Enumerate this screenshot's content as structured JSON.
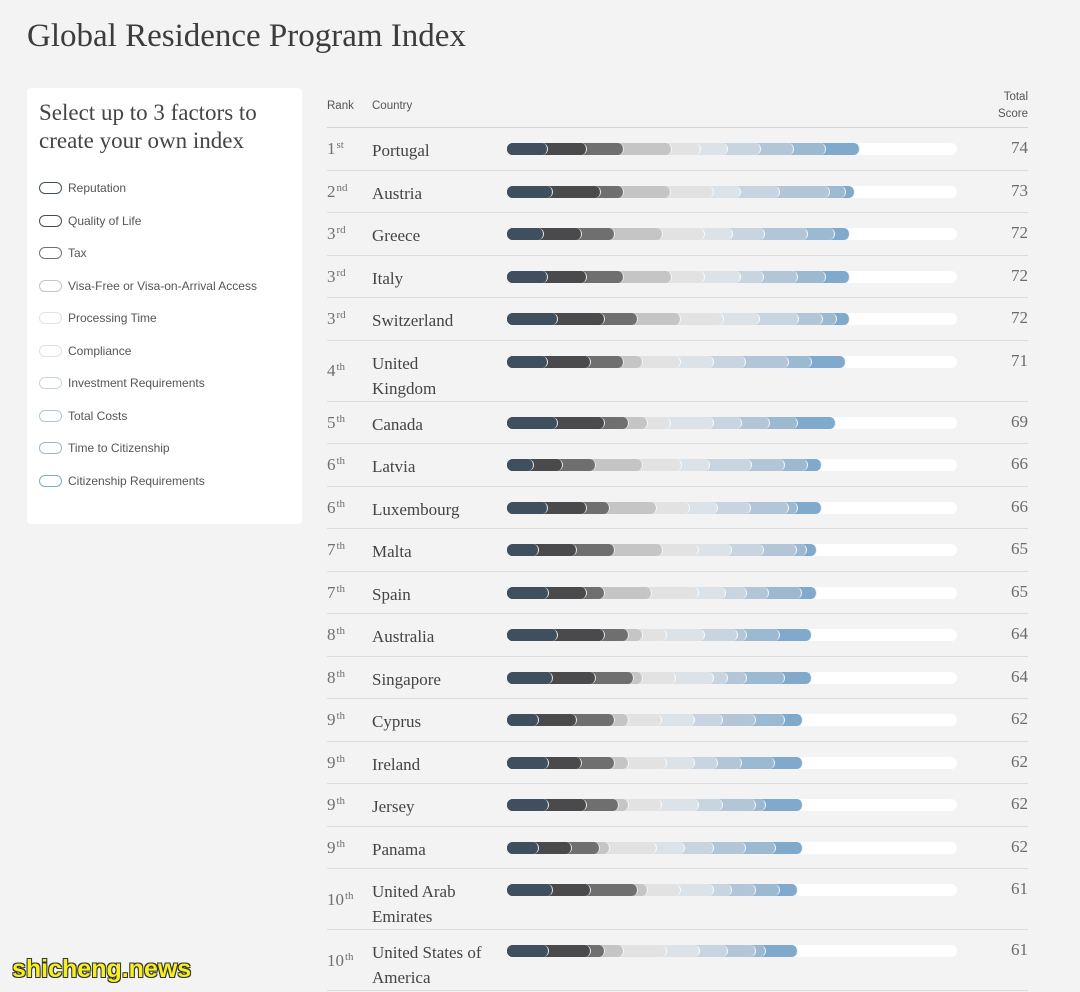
{
  "page": {
    "title": "Global Residence Program Index"
  },
  "sidebar": {
    "heading": "Select up to 3 factors to create your own index",
    "factors": [
      {
        "label": "Reputation",
        "color": "#3f4f5d"
      },
      {
        "label": "Quality of Life",
        "color": "#4a4a4c"
      },
      {
        "label": "Tax",
        "color": "#6f6f6f"
      },
      {
        "label": "Visa-Free or Visa-on-Arrival Access",
        "color": "#c5c5c5"
      },
      {
        "label": "Processing Time",
        "color": "#e2e2e2"
      },
      {
        "label": "Compliance",
        "color": "#dbe2e8"
      },
      {
        "label": "Investment Requirements",
        "color": "#c8d5e1"
      },
      {
        "label": "Total Costs",
        "color": "#b2c6d8"
      },
      {
        "label": "Time to Citizenship",
        "color": "#9cb9d2"
      },
      {
        "label": "Citizenship Requirements",
        "color": "#80a9cc"
      }
    ]
  },
  "table": {
    "headers": {
      "rank": "Rank",
      "country": "Country",
      "total_score": "Total Score"
    },
    "rows": [
      {
        "rank": "1",
        "rank_suffix": "st",
        "country": "Portugal",
        "total_score": 74,
        "factor_scores": [
          8.6,
          8.2,
          7.8,
          9.9,
          6.1,
          5.7,
          6.9,
          6.9,
          6.7,
          7.2
        ]
      },
      {
        "rank": "2",
        "rank_suffix": "nd",
        "country": "Austria",
        "total_score": 73,
        "factor_scores": [
          9.6,
          10.1,
          4.8,
          9.9,
          9.0,
          5.7,
          8.2,
          10.4,
          3.4,
          1.9
        ]
      },
      {
        "rank": "3",
        "rank_suffix": "rd",
        "country": "Greece",
        "total_score": 72,
        "factor_scores": [
          7.8,
          8.0,
          6.9,
          9.9,
          9.0,
          5.7,
          6.7,
          9.0,
          5.7,
          3.3
        ]
      },
      {
        "rank": "3",
        "rank_suffix": "rd",
        "country": "Italy",
        "total_score": 72,
        "factor_scores": [
          8.6,
          8.2,
          7.8,
          9.9,
          7.1,
          7.5,
          4.8,
          7.1,
          5.9,
          5.1
        ]
      },
      {
        "rank": "3",
        "rank_suffix": "rd",
        "country": "Switzerland",
        "total_score": 72,
        "factor_scores": [
          10.7,
          9.9,
          6.9,
          9.0,
          9.0,
          7.5,
          8.2,
          5.0,
          2.9,
          2.9
        ]
      },
      {
        "rank": "4",
        "rank_suffix": "th",
        "country": "United Kingdom",
        "total_score": 71,
        "factor_scores": [
          8.6,
          9.0,
          6.9,
          4.0,
          8.0,
          6.9,
          6.7,
          9.0,
          4.8,
          7.1
        ]
      },
      {
        "rank": "5",
        "rank_suffix": "th",
        "country": "Canada",
        "total_score": 69,
        "factor_scores": [
          10.7,
          9.9,
          5.0,
          4.0,
          4.8,
          9.0,
          5.9,
          5.9,
          5.9,
          7.9
        ]
      },
      {
        "rank": "6",
        "rank_suffix": "th",
        "country": "Latvia",
        "total_score": 66,
        "factor_scores": [
          5.7,
          6.1,
          6.9,
          9.9,
          8.0,
          5.9,
          8.8,
          6.9,
          5.0,
          2.8
        ]
      },
      {
        "rank": "6",
        "rank_suffix": "th",
        "country": "Luxembourg",
        "total_score": 66,
        "factor_scores": [
          8.6,
          8.2,
          4.8,
          9.9,
          6.9,
          5.9,
          6.9,
          8.0,
          1.9,
          4.9
        ]
      },
      {
        "rank": "7",
        "rank_suffix": "th",
        "country": "Malta",
        "total_score": 65,
        "factor_scores": [
          6.7,
          8.0,
          8.0,
          9.9,
          7.7,
          6.9,
          6.7,
          6.9,
          2.1,
          2.1
        ]
      },
      {
        "rank": "7",
        "rank_suffix": "th",
        "country": "Spain",
        "total_score": 65,
        "factor_scores": [
          8.8,
          8.0,
          3.8,
          9.8,
          9.9,
          5.7,
          4.4,
          4.6,
          6.9,
          3.1
        ]
      },
      {
        "rank": "8",
        "rank_suffix": "th",
        "country": "Australia",
        "total_score": 64,
        "factor_scores": [
          10.7,
          9.9,
          5.0,
          2.9,
          5.0,
          8.0,
          6.9,
          1.9,
          6.9,
          6.8
        ]
      },
      {
        "rank": "8",
        "rank_suffix": "th",
        "country": "Singapore",
        "total_score": 64,
        "factor_scores": [
          9.6,
          9.0,
          8.0,
          1.9,
          6.9,
          8.0,
          2.9,
          4.0,
          8.0,
          5.7
        ]
      },
      {
        "rank": "9",
        "rank_suffix": "th",
        "country": "Cyprus",
        "total_score": 62,
        "factor_scores": [
          6.7,
          8.0,
          8.0,
          2.9,
          6.9,
          6.9,
          5.9,
          6.9,
          6.1,
          3.7
        ]
      },
      {
        "rank": "9",
        "rank_suffix": "th",
        "country": "Ireland",
        "total_score": 62,
        "factor_scores": [
          8.8,
          6.9,
          6.9,
          2.9,
          8.0,
          5.9,
          4.8,
          5.0,
          6.9,
          5.9
        ]
      },
      {
        "rank": "9",
        "rank_suffix": "th",
        "country": "Jersey",
        "total_score": 62,
        "factor_scores": [
          8.8,
          8.0,
          6.7,
          2.1,
          6.9,
          7.8,
          5.0,
          6.9,
          2.1,
          7.7
        ]
      },
      {
        "rank": "9",
        "rank_suffix": "th",
        "country": "Panama",
        "total_score": 62,
        "factor_scores": [
          6.7,
          6.9,
          5.9,
          2.1,
          9.9,
          5.9,
          5.9,
          6.9,
          6.1,
          5.7
        ]
      },
      {
        "rank": "10",
        "rank_suffix": "th",
        "country": "United Arab Emirates",
        "total_score": 61,
        "factor_scores": [
          9.6,
          8.0,
          9.9,
          2.1,
          6.9,
          6.9,
          3.8,
          5.0,
          5.0,
          3.8
        ]
      },
      {
        "rank": "10",
        "rank_suffix": "th",
        "country": "United States of America",
        "total_score": 61,
        "factor_scores": [
          8.8,
          8.8,
          2.9,
          4.0,
          9.0,
          6.9,
          5.9,
          5.9,
          2.1,
          6.7
        ]
      }
    ]
  },
  "watermark": "shicheng.news"
}
